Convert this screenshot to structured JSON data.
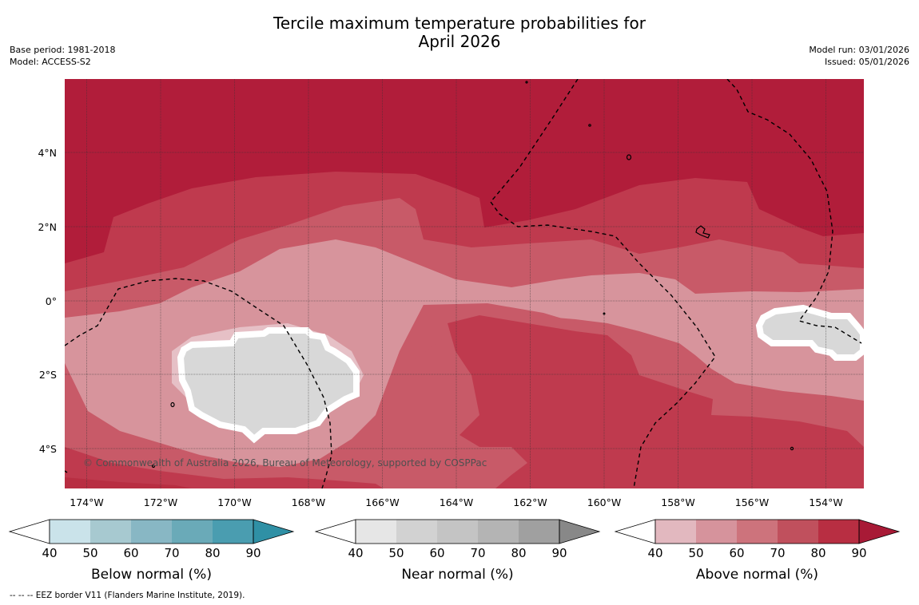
{
  "title": {
    "line1": "Tercile maximum temperature probabilities for",
    "line2": "April 2026"
  },
  "meta": {
    "base_period": "Base period: 1981-2018",
    "model": "Model: ACCESS-S2",
    "model_run": "Model run: 03/01/2026",
    "issued": "Issued: 05/01/2026"
  },
  "map": {
    "copyright": "© Commonwealth of Australia 2026, Bureau of Meteorology, supported by COSPPac",
    "lon_ticks": [
      "174°W",
      "172°W",
      "170°W",
      "168°W",
      "166°W",
      "164°W",
      "162°W",
      "160°W",
      "158°W",
      "156°W",
      "154°W"
    ],
    "lat_ticks": [
      "4°N",
      "2°N",
      "0°",
      "2°S",
      "4°S"
    ]
  },
  "colorbars": [
    {
      "name": "below",
      "label": "Below normal (%)",
      "ticks": [
        "40",
        "50",
        "60",
        "70",
        "80",
        "90"
      ],
      "colors": [
        "#ffffff",
        "#cae3ea",
        "#a7c9d0",
        "#88b7c4",
        "#6aaab8",
        "#4a9db0",
        "#2f90a5"
      ]
    },
    {
      "name": "near",
      "label": "Near normal (%)",
      "ticks": [
        "40",
        "50",
        "60",
        "70",
        "80",
        "90"
      ],
      "colors": [
        "#ffffff",
        "#e6e6e6",
        "#d2d2d2",
        "#c4c4c4",
        "#b4b4b4",
        "#a0a0a0",
        "#888888"
      ]
    },
    {
      "name": "above",
      "label": "Above normal (%)",
      "ticks": [
        "40",
        "50",
        "60",
        "70",
        "80",
        "90"
      ],
      "colors": [
        "#ffffff",
        "#e2b8bf",
        "#d6939c",
        "#cd737c",
        "#c0505d",
        "#b82e42",
        "#a81a36"
      ]
    }
  ],
  "legend": {
    "eez": "--  --  -- EEZ border V11 (Flanders Marine Institute, 2019)."
  }
}
